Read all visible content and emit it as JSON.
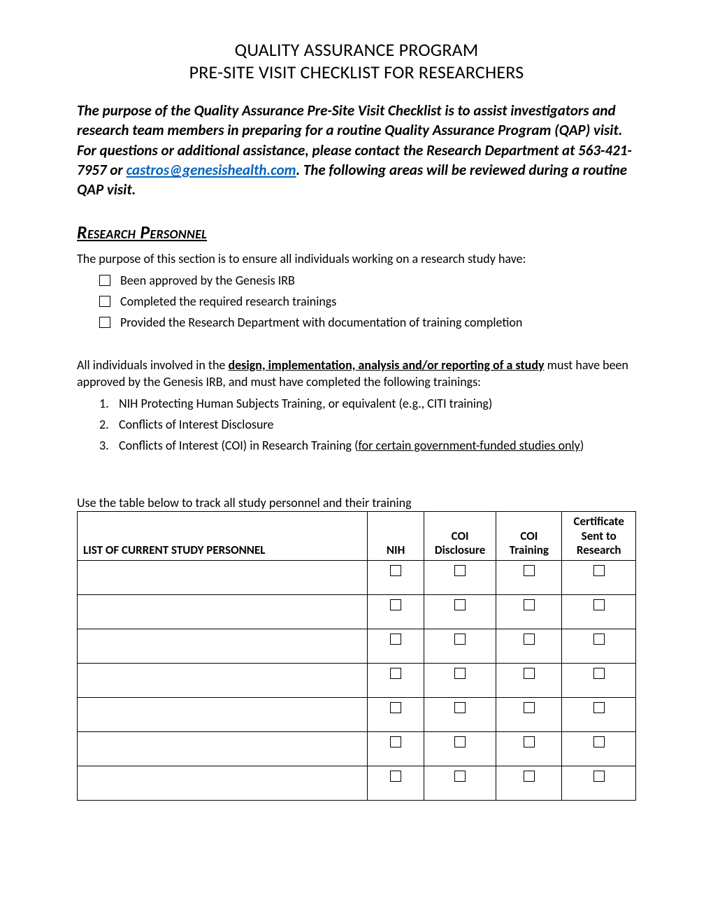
{
  "header": {
    "line1": "QUALITY ASSURANCE PROGRAM",
    "line2": "PRE-SITE VISIT CHECKLIST FOR RESEARCHERS"
  },
  "intro": {
    "pre_link": "The purpose of the Quality Assurance Pre-Site Visit Checklist is to assist investigators and research team members in preparing for a routine Quality Assurance Program (QAP) visit. For questions or additional assistance, please contact the Research Department at 563-421-7957 or ",
    "link_text": "castros@genesishealth.com",
    "link_href": "mailto:castros@genesishealth.com",
    "post_link": ". The following areas will be reviewed during a routine QAP visit."
  },
  "section": {
    "heading": "Research Personnel",
    "purpose": "The purpose of this section is to ensure all individuals working on a research study have:",
    "checks": [
      "Been approved by the Genesis IRB",
      "Completed the required research trainings",
      "Provided the Research Department with documentation of training completion"
    ],
    "para2_pre": "All individuals involved in the ",
    "para2_bold_underline": "design, implementation, analysis and/or reporting of a study",
    "para2_post": " must have been approved by the Genesis IRB, and must have completed the following trainings:",
    "trainings": [
      {
        "num": "1.",
        "text": "NIH Protecting Human Subjects Training, or equivalent (e.g., CITI training)"
      },
      {
        "num": "2.",
        "text": "Conflicts of Interest Disclosure"
      },
      {
        "num": "3.",
        "text_pre": "Conflicts of Interest (COI) in Research Training (",
        "text_underline": "for certain government-funded studies only",
        "text_post": ")"
      }
    ],
    "table_caption": "Use the table below to track all study personnel and their training",
    "table": {
      "headers": {
        "name": "LIST OF CURRENT STUDY PERSONNEL",
        "nih": "NIH",
        "coi_disclosure": "COI Disclosure",
        "coi_training": "COI Training",
        "cert": "Certificate Sent to Research"
      },
      "row_count": 7
    }
  },
  "colors": {
    "text": "#000000",
    "link": "#0563c1",
    "background": "#ffffff",
    "border": "#000000"
  }
}
